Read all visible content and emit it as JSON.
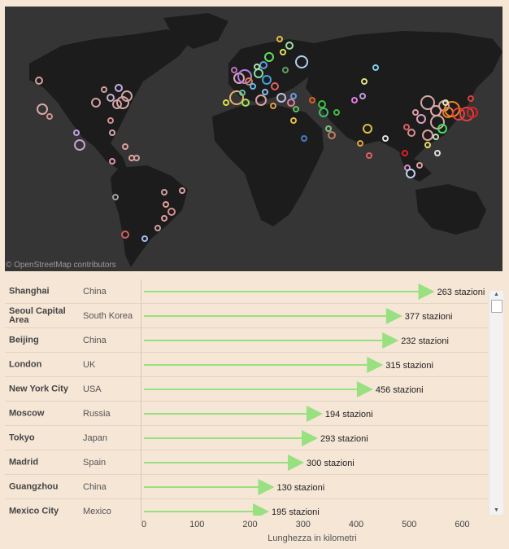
{
  "map": {
    "attribution": "© OpenStreetMap contributors",
    "land_color": "#1c1c1c",
    "ocean_color": "#353535"
  },
  "chart_data": {
    "type": "bar",
    "xlabel": "Lunghezza in kilometri",
    "xlim": [
      0,
      650
    ],
    "ticks": [
      0,
      100,
      200,
      300,
      400,
      500,
      600
    ],
    "bar_color": "#98e080",
    "rows": [
      {
        "city": "Shanghai",
        "country": "China",
        "length_km": 548,
        "stations": 263,
        "label": "263 stazioni"
      },
      {
        "city": "Seoul Capital Area",
        "country": "South Korea",
        "length_km": 487,
        "stations": 377,
        "label": "377 stazioni"
      },
      {
        "city": "Beijing",
        "country": "China",
        "length_km": 480,
        "stations": 232,
        "label": "232 stazioni"
      },
      {
        "city": "London",
        "country": "UK",
        "length_km": 451,
        "stations": 315,
        "label": "315 stazioni"
      },
      {
        "city": "New York City",
        "country": "USA",
        "length_km": 432,
        "stations": 456,
        "label": "456 stazioni"
      },
      {
        "city": "Moscow",
        "country": "Russia",
        "length_km": 337,
        "stations": 194,
        "label": "194 stazioni"
      },
      {
        "city": "Tokyo",
        "country": "Japan",
        "length_km": 328,
        "stations": 293,
        "label": "293 stazioni"
      },
      {
        "city": "Madrid",
        "country": "Spain",
        "length_km": 302,
        "stations": 300,
        "label": "300 stazioni"
      },
      {
        "city": "Guangzhou",
        "country": "China",
        "length_km": 246,
        "stations": 130,
        "label": "130 stazioni"
      },
      {
        "city": "Mexico City",
        "country": "Mexico",
        "length_km": 236,
        "stations": 195,
        "label": "195 stazioni"
      }
    ]
  }
}
